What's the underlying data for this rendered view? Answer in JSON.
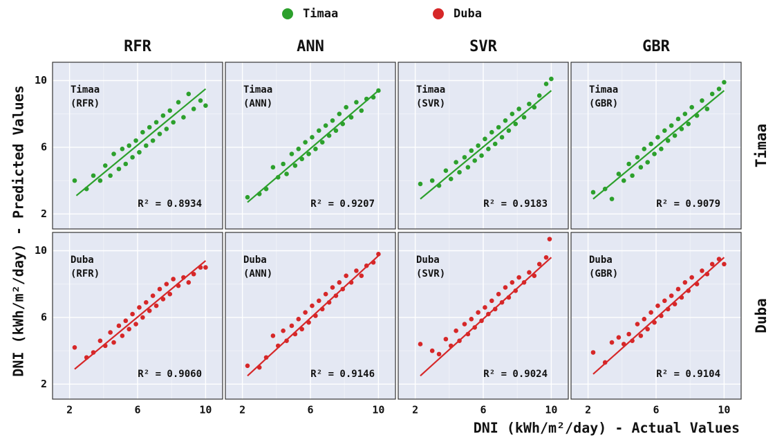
{
  "chart_data": {
    "type": "scatter",
    "series": [
      {
        "name": "Timaa",
        "color": "#2ca02c"
      },
      {
        "name": "Duba",
        "color": "#d62728"
      }
    ],
    "models": [
      "RFR",
      "ANN",
      "SVR",
      "GBR"
    ],
    "x_label": "DNI (kWh/m²/day) - Actual Values",
    "y_label": "DNI (kWh/m²/day) - Predicted Values",
    "xlim": [
      1.0,
      11.0
    ],
    "ylim": [
      1.1,
      11.1
    ],
    "xticks": [
      2,
      6,
      10
    ],
    "yticks": [
      2,
      6,
      10
    ],
    "minor_grid": [
      4,
      8
    ],
    "grid": true,
    "panels": [
      {
        "row": 0,
        "col": 0,
        "tag": "(RFR)",
        "annotation": "R² = 0.8934",
        "fit_x": [
          2.4,
          10
        ],
        "fit_y": [
          3.1,
          9.5
        ],
        "x": [
          2.3,
          3.0,
          3.4,
          3.8,
          4.1,
          4.4,
          4.6,
          4.9,
          5.1,
          5.3,
          5.5,
          5.7,
          5.9,
          6.1,
          6.3,
          6.5,
          6.7,
          6.9,
          7.1,
          7.3,
          7.5,
          7.7,
          7.9,
          8.1,
          8.4,
          8.7,
          9.0,
          9.3,
          9.7,
          10.0
        ],
        "y": [
          4.0,
          3.5,
          4.3,
          4.0,
          4.9,
          4.3,
          5.6,
          4.7,
          5.9,
          5.0,
          6.1,
          5.4,
          6.4,
          5.7,
          6.9,
          6.1,
          7.2,
          6.4,
          7.5,
          6.8,
          7.9,
          7.1,
          8.2,
          7.5,
          8.7,
          7.8,
          9.2,
          8.3,
          8.8,
          8.5
        ]
      },
      {
        "row": 0,
        "col": 1,
        "tag": "(ANN)",
        "annotation": "R² = 0.9207",
        "fit_x": [
          2.3,
          10
        ],
        "fit_y": [
          2.7,
          9.4
        ],
        "x": [
          2.3,
          3.0,
          3.4,
          3.8,
          4.1,
          4.4,
          4.6,
          4.9,
          5.1,
          5.3,
          5.5,
          5.7,
          5.9,
          6.1,
          6.3,
          6.5,
          6.7,
          6.9,
          7.1,
          7.3,
          7.5,
          7.7,
          7.9,
          8.1,
          8.4,
          8.7,
          9.0,
          9.3,
          9.7,
          10.0
        ],
        "y": [
          3.0,
          3.2,
          3.5,
          4.8,
          4.2,
          5.0,
          4.4,
          5.6,
          4.9,
          5.9,
          5.3,
          6.3,
          5.6,
          6.6,
          5.9,
          7.0,
          6.3,
          7.3,
          6.7,
          7.6,
          7.0,
          8.0,
          7.4,
          8.4,
          7.8,
          8.7,
          8.2,
          8.9,
          9.0,
          9.4
        ]
      },
      {
        "row": 0,
        "col": 2,
        "tag": "(SVR)",
        "annotation": "R² = 0.9183",
        "fit_x": [
          2.3,
          10
        ],
        "fit_y": [
          2.9,
          9.4
        ],
        "x": [
          2.3,
          3.0,
          3.4,
          3.8,
          4.1,
          4.4,
          4.6,
          4.9,
          5.1,
          5.3,
          5.5,
          5.7,
          5.9,
          6.1,
          6.3,
          6.5,
          6.7,
          6.9,
          7.1,
          7.3,
          7.5,
          7.7,
          7.9,
          8.1,
          8.4,
          8.7,
          9.0,
          9.3,
          9.7,
          10.0
        ],
        "y": [
          3.8,
          4.0,
          3.7,
          4.6,
          4.1,
          5.1,
          4.5,
          5.4,
          4.8,
          5.8,
          5.2,
          6.1,
          5.5,
          6.5,
          5.9,
          6.9,
          6.2,
          7.2,
          6.6,
          7.6,
          7.0,
          8.0,
          7.4,
          8.3,
          7.8,
          8.6,
          8.4,
          9.1,
          9.8,
          10.1
        ]
      },
      {
        "row": 0,
        "col": 3,
        "tag": "(GBR)",
        "annotation": "R² = 0.9079",
        "fit_x": [
          2.3,
          10
        ],
        "fit_y": [
          2.9,
          9.4
        ],
        "x": [
          2.3,
          3.0,
          3.4,
          3.8,
          4.1,
          4.4,
          4.6,
          4.9,
          5.1,
          5.3,
          5.5,
          5.7,
          5.9,
          6.1,
          6.3,
          6.5,
          6.7,
          6.9,
          7.1,
          7.3,
          7.5,
          7.7,
          7.9,
          8.1,
          8.4,
          8.7,
          9.0,
          9.3,
          9.7,
          10.0
        ],
        "y": [
          3.3,
          3.5,
          2.9,
          4.4,
          4.0,
          5.0,
          4.3,
          5.4,
          4.8,
          5.9,
          5.1,
          6.2,
          5.6,
          6.6,
          5.9,
          7.0,
          6.4,
          7.3,
          6.7,
          7.7,
          7.1,
          8.0,
          7.4,
          8.4,
          7.9,
          8.8,
          8.3,
          9.2,
          9.5,
          9.9
        ]
      },
      {
        "row": 1,
        "col": 0,
        "tag": "(RFR)",
        "annotation": "R² = 0.9060",
        "fit_x": [
          2.3,
          10
        ],
        "fit_y": [
          2.9,
          9.4
        ],
        "x": [
          2.3,
          3.0,
          3.4,
          3.8,
          4.1,
          4.4,
          4.6,
          4.9,
          5.1,
          5.3,
          5.5,
          5.7,
          5.9,
          6.1,
          6.3,
          6.5,
          6.7,
          6.9,
          7.1,
          7.3,
          7.5,
          7.7,
          7.9,
          8.1,
          8.4,
          8.7,
          9.0,
          9.3,
          9.7,
          10.0
        ],
        "y": [
          4.2,
          3.6,
          3.9,
          4.6,
          4.3,
          5.1,
          4.5,
          5.5,
          4.9,
          5.8,
          5.3,
          6.2,
          5.6,
          6.6,
          6.0,
          6.9,
          6.4,
          7.3,
          6.7,
          7.7,
          7.1,
          8.0,
          7.4,
          8.3,
          7.9,
          8.4,
          8.1,
          8.6,
          9.0,
          9.0
        ]
      },
      {
        "row": 1,
        "col": 1,
        "tag": "(ANN)",
        "annotation": "R² = 0.9146",
        "fit_x": [
          2.3,
          10
        ],
        "fit_y": [
          2.5,
          9.7
        ],
        "x": [
          2.3,
          3.0,
          3.4,
          3.8,
          4.1,
          4.4,
          4.6,
          4.9,
          5.1,
          5.3,
          5.5,
          5.7,
          5.9,
          6.1,
          6.3,
          6.5,
          6.7,
          6.9,
          7.1,
          7.3,
          7.5,
          7.7,
          7.9,
          8.1,
          8.4,
          8.7,
          9.0,
          9.3,
          9.7,
          10.0
        ],
        "y": [
          3.1,
          3.0,
          3.6,
          4.9,
          4.3,
          5.2,
          4.6,
          5.5,
          5.0,
          5.9,
          5.3,
          6.3,
          5.7,
          6.7,
          6.1,
          7.0,
          6.5,
          7.4,
          6.9,
          7.8,
          7.3,
          8.1,
          7.7,
          8.5,
          8.1,
          8.8,
          8.5,
          9.1,
          9.3,
          9.8
        ]
      },
      {
        "row": 1,
        "col": 2,
        "tag": "(SVR)",
        "annotation": "R² = 0.9024",
        "fit_x": [
          2.3,
          10
        ],
        "fit_y": [
          2.5,
          9.6
        ],
        "x": [
          2.3,
          3.0,
          3.4,
          3.8,
          4.1,
          4.4,
          4.6,
          4.9,
          5.1,
          5.3,
          5.5,
          5.7,
          5.9,
          6.1,
          6.3,
          6.5,
          6.7,
          6.9,
          7.1,
          7.3,
          7.5,
          7.7,
          7.9,
          8.1,
          8.4,
          8.7,
          9.0,
          9.3,
          9.7,
          9.9
        ],
        "y": [
          4.4,
          4.0,
          3.8,
          4.7,
          4.3,
          5.2,
          4.6,
          5.6,
          5.0,
          5.9,
          5.4,
          6.3,
          5.8,
          6.6,
          6.2,
          7.0,
          6.5,
          7.4,
          6.9,
          7.8,
          7.2,
          8.1,
          7.6,
          8.4,
          8.1,
          8.7,
          8.5,
          9.2,
          9.6,
          10.7
        ]
      },
      {
        "row": 1,
        "col": 3,
        "tag": "(GBR)",
        "annotation": "R² = 0.9104",
        "fit_x": [
          2.3,
          10
        ],
        "fit_y": [
          2.6,
          9.6
        ],
        "x": [
          2.3,
          3.0,
          3.4,
          3.8,
          4.1,
          4.4,
          4.6,
          4.9,
          5.1,
          5.3,
          5.5,
          5.7,
          5.9,
          6.1,
          6.3,
          6.5,
          6.7,
          6.9,
          7.1,
          7.3,
          7.5,
          7.7,
          7.9,
          8.1,
          8.4,
          8.7,
          9.0,
          9.3,
          9.7,
          10.0
        ],
        "y": [
          3.9,
          3.3,
          4.5,
          4.8,
          4.4,
          5.0,
          4.6,
          5.6,
          4.9,
          5.9,
          5.3,
          6.3,
          5.7,
          6.7,
          6.1,
          7.0,
          6.5,
          7.3,
          6.8,
          7.7,
          7.2,
          8.1,
          7.6,
          8.4,
          8.0,
          8.8,
          8.6,
          9.2,
          9.5,
          9.2
        ]
      }
    ]
  }
}
